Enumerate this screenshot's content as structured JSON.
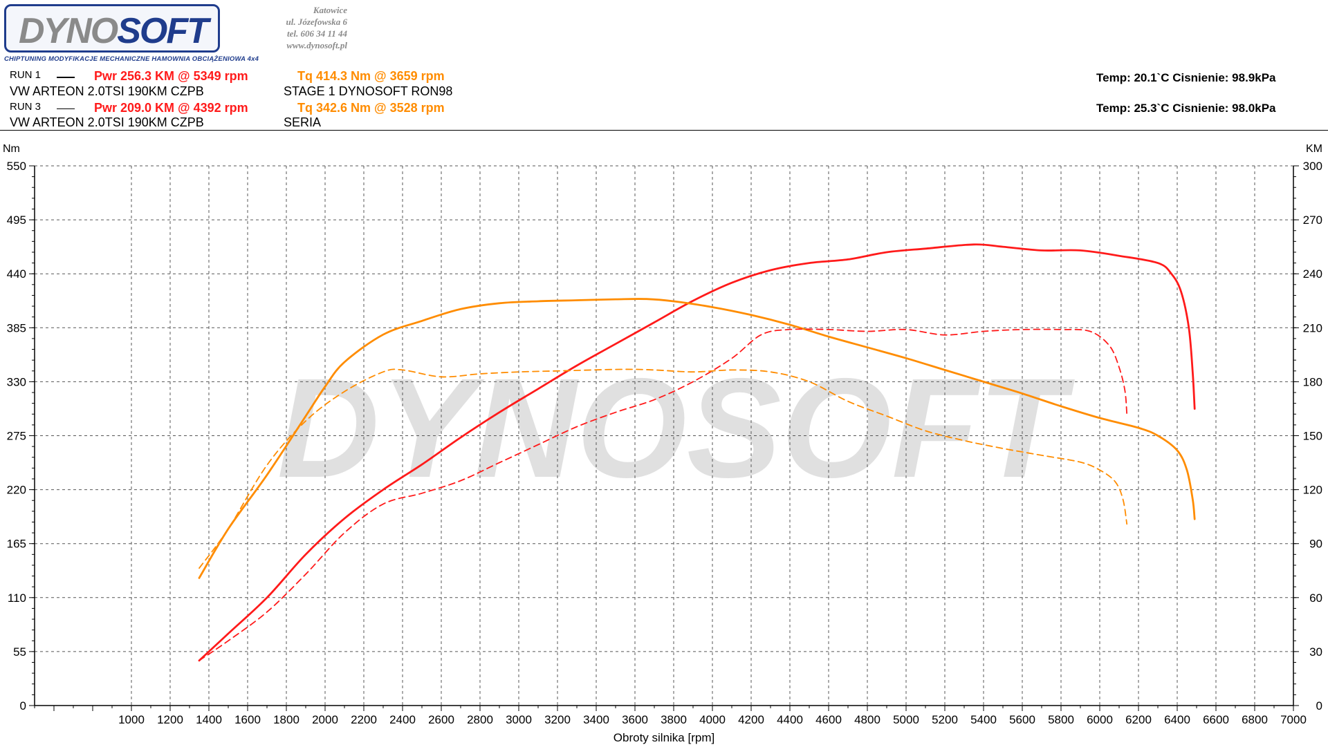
{
  "header": {
    "logo_text_gray": "DYNO",
    "logo_text_blue": "SOFT",
    "address": [
      "Katowice",
      "ul. Józefowska 6",
      "tel. 606 34 11 44",
      "www.dynosoft.pl"
    ],
    "tagline": "CHIPTUNING   MODYFIKACJE MECHANICZNE   HAMOWNIA OBCIĄŻENIOWA 4x4",
    "runs": [
      {
        "label": "RUN 1",
        "car": "VW ARTEON 2.0TSI 190KM CZPB",
        "pwr": "Pwr  256.3 KM @ 5349 rpm",
        "tq": "Tq 414.3 Nm @ 3659 rpm",
        "note": "STAGE 1 DYNOSOFT RON98",
        "conditions": "Temp: 20.1`C   Cisnienie: 98.9kPa"
      },
      {
        "label": "RUN 3",
        "car": "VW ARTEON 2.0TSI 190KM CZPB",
        "pwr": "Pwr  209.0 KM @ 4392 rpm",
        "tq": "Tq 342.6 Nm @ 3528 rpm",
        "note": "SERIA",
        "conditions": "Temp: 25.3`C   Cisnienie: 98.0kPa"
      }
    ]
  },
  "watermark": "DYNOSOFT",
  "colors": {
    "power": "#ff1a1a",
    "torque": "#ff8c00",
    "grid": "#555555"
  },
  "chart_data": {
    "type": "line",
    "xlabel": "Obroty silnika [rpm]",
    "ylabel_left": "Nm",
    "ylabel_right": "KM",
    "xlim": [
      500,
      7000
    ],
    "ylim_left": [
      0,
      550
    ],
    "ylim_right": [
      0,
      300
    ],
    "x_ticks": [
      1000,
      1200,
      1400,
      1600,
      1800,
      2000,
      2200,
      2400,
      2600,
      2800,
      3000,
      3200,
      3400,
      3600,
      3800,
      4000,
      4200,
      4400,
      4600,
      4800,
      5000,
      5200,
      5400,
      5600,
      5800,
      6000,
      6200,
      6400,
      6600,
      6800,
      7000
    ],
    "y_ticks_left": [
      0,
      55,
      110,
      165,
      220,
      275,
      330,
      385,
      440,
      495,
      550
    ],
    "y_ticks_right": [
      0,
      30,
      60,
      90,
      120,
      150,
      180,
      210,
      240,
      270,
      300
    ],
    "grid": true,
    "series": [
      {
        "name": "RUN 1",
        "quantity": "Pwr",
        "axis": "right",
        "style": "solid",
        "color": "#ff1a1a",
        "x": [
          1350,
          1500,
          1700,
          1900,
          2100,
          2300,
          2500,
          2700,
          2900,
          3100,
          3300,
          3500,
          3700,
          3900,
          4100,
          4300,
          4500,
          4700,
          4900,
          5100,
          5349,
          5500,
          5700,
          5900,
          6100,
          6300,
          6370,
          6420,
          6460,
          6480,
          6490
        ],
        "y": [
          25,
          40,
          60,
          84,
          104,
          120,
          134,
          149,
          163,
          176,
          189,
          201,
          213,
          225,
          235,
          242,
          246,
          248,
          252,
          254,
          256.3,
          255,
          253,
          253,
          250,
          246,
          240,
          230,
          210,
          185,
          165
        ]
      },
      {
        "name": "RUN 1",
        "quantity": "Tq",
        "axis": "left",
        "style": "solid",
        "color": "#ff8c00",
        "x": [
          1350,
          1500,
          1700,
          1900,
          2000,
          2100,
          2300,
          2500,
          2700,
          2900,
          3100,
          3300,
          3500,
          3659,
          3800,
          4000,
          4200,
          4400,
          4600,
          4800,
          5000,
          5200,
          5400,
          5600,
          5800,
          6000,
          6200,
          6300,
          6400,
          6450,
          6480,
          6490
        ],
        "y": [
          130,
          180,
          235,
          295,
          325,
          350,
          378,
          392,
          404,
          410,
          412,
          413,
          414,
          414.3,
          412,
          406,
          398,
          388,
          376,
          365,
          354,
          342,
          330,
          318,
          305,
          293,
          283,
          275,
          260,
          240,
          210,
          190
        ]
      },
      {
        "name": "RUN 3",
        "quantity": "Pwr",
        "axis": "right",
        "style": "dashed",
        "color": "#ff1a1a",
        "x": [
          1350,
          1500,
          1700,
          1900,
          2100,
          2300,
          2500,
          2700,
          2900,
          3100,
          3300,
          3500,
          3700,
          3900,
          4100,
          4250,
          4392,
          4600,
          4800,
          5000,
          5200,
          5400,
          5600,
          5800,
          5950,
          6050,
          6100,
          6130,
          6140
        ],
        "y": [
          25,
          36,
          52,
          73,
          96,
          112,
          118,
          125,
          135,
          145,
          155,
          163,
          170,
          180,
          193,
          206,
          209,
          209,
          208,
          209,
          206,
          208,
          209,
          209,
          208,
          200,
          188,
          175,
          162
        ]
      },
      {
        "name": "RUN 3",
        "quantity": "Tq",
        "axis": "left",
        "style": "dashed",
        "color": "#ff8c00",
        "x": [
          1350,
          1500,
          1700,
          1900,
          2100,
          2300,
          2400,
          2600,
          2800,
          3000,
          3200,
          3528,
          3700,
          3900,
          4100,
          4300,
          4500,
          4700,
          4900,
          5100,
          5300,
          5500,
          5700,
          5900,
          6000,
          6080,
          6120,
          6140
        ],
        "y": [
          140,
          180,
          245,
          290,
          320,
          340,
          342,
          335,
          338,
          340,
          341,
          342.6,
          342,
          340,
          342,
          340,
          330,
          310,
          295,
          280,
          270,
          262,
          255,
          248,
          240,
          228,
          210,
          185
        ]
      }
    ]
  }
}
